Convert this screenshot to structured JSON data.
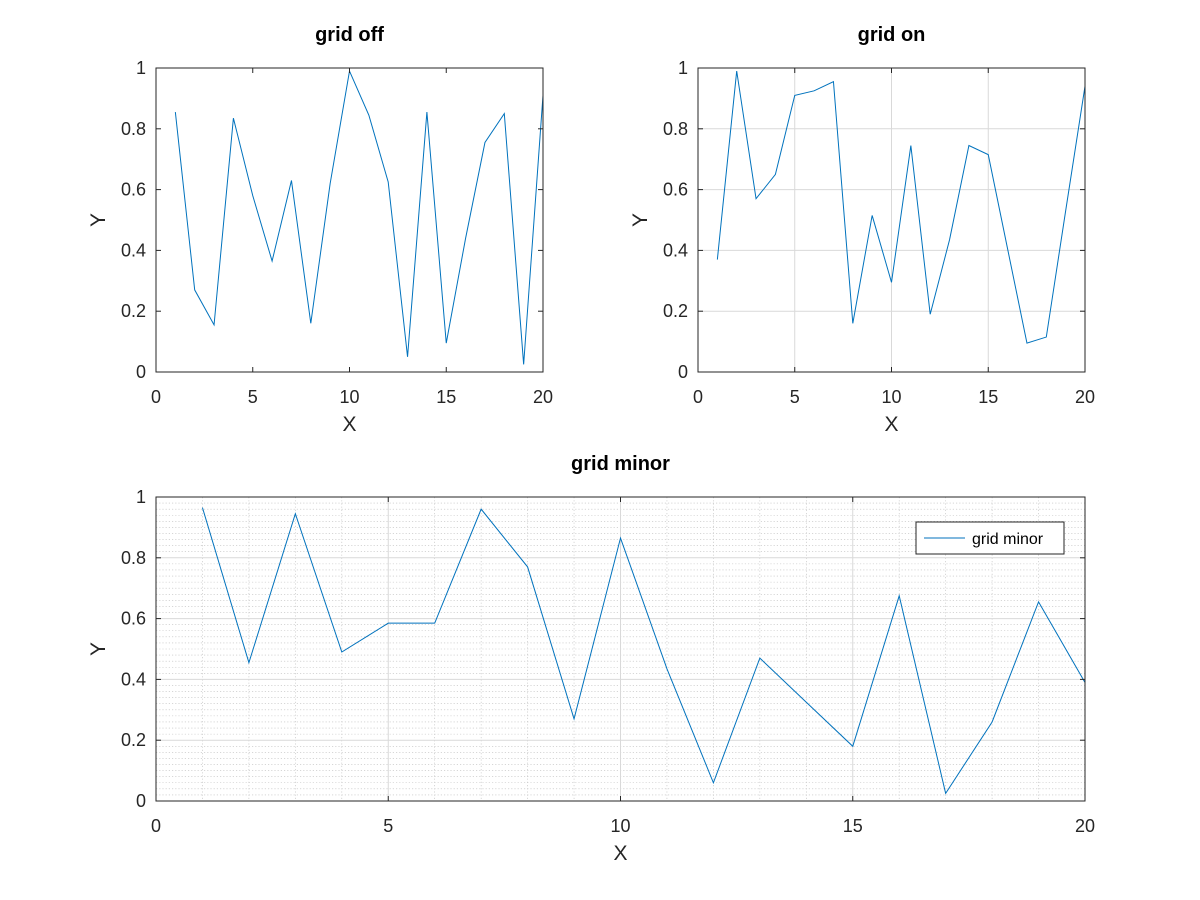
{
  "chart_data": [
    {
      "type": "line",
      "title": "grid off",
      "xlabel": "X",
      "ylabel": "Y",
      "xlim": [
        0,
        20
      ],
      "ylim": [
        0,
        1
      ],
      "xticks": [
        0,
        5,
        10,
        15,
        20
      ],
      "yticks": [
        0,
        0.2,
        0.4,
        0.6,
        0.8,
        1
      ],
      "xtick_labels": [
        "0",
        "5",
        "10",
        "15",
        "20"
      ],
      "ytick_labels": [
        "0",
        "0.2",
        "0.4",
        "0.6",
        "0.8",
        "1"
      ],
      "grid": "off",
      "legend": null,
      "series": [
        {
          "color": "#0072BD",
          "x": [
            1,
            2,
            3,
            4,
            5,
            6,
            7,
            8,
            9,
            10,
            11,
            12,
            13,
            14,
            15,
            16,
            17,
            18,
            19,
            20
          ],
          "y": [
            0.855,
            0.27,
            0.155,
            0.835,
            0.58,
            0.365,
            0.63,
            0.16,
            0.62,
            0.99,
            0.845,
            0.625,
            0.05,
            0.855,
            0.095,
            0.44,
            0.755,
            0.85,
            0.025,
            0.91
          ]
        }
      ]
    },
    {
      "type": "line",
      "title": "grid on",
      "xlabel": "X",
      "ylabel": "Y",
      "xlim": [
        0,
        20
      ],
      "ylim": [
        0,
        1
      ],
      "xticks": [
        0,
        5,
        10,
        15,
        20
      ],
      "yticks": [
        0,
        0.2,
        0.4,
        0.6,
        0.8,
        1
      ],
      "xtick_labels": [
        "0",
        "5",
        "10",
        "15",
        "20"
      ],
      "ytick_labels": [
        "0",
        "0.2",
        "0.4",
        "0.6",
        "0.8",
        "1"
      ],
      "grid": "on",
      "legend": null,
      "series": [
        {
          "color": "#0072BD",
          "x": [
            1,
            2,
            3,
            4,
            5,
            6,
            7,
            8,
            9,
            10,
            11,
            12,
            13,
            14,
            15,
            16,
            17,
            18,
            19,
            20
          ],
          "y": [
            0.37,
            0.99,
            0.57,
            0.65,
            0.91,
            0.925,
            0.955,
            0.16,
            0.515,
            0.295,
            0.745,
            0.19,
            0.435,
            0.745,
            0.715,
            0.405,
            0.095,
            0.115,
            0.53,
            0.94
          ]
        }
      ]
    },
    {
      "type": "line",
      "title": "grid minor",
      "xlabel": "X",
      "ylabel": "Y",
      "xlim": [
        0,
        20
      ],
      "ylim": [
        0,
        1
      ],
      "xticks": [
        0,
        5,
        10,
        15,
        20
      ],
      "yticks": [
        0,
        0.2,
        0.4,
        0.6,
        0.8,
        1
      ],
      "xtick_labels": [
        "0",
        "5",
        "10",
        "15",
        "20"
      ],
      "ytick_labels": [
        "0",
        "0.2",
        "0.4",
        "0.6",
        "0.8",
        "1"
      ],
      "grid": "minor",
      "legend": "top-right",
      "series": [
        {
          "name": "grid minor",
          "color": "#0072BD",
          "x": [
            1,
            2,
            3,
            4,
            5,
            6,
            7,
            8,
            9,
            10,
            11,
            12,
            13,
            14,
            15,
            16,
            17,
            18,
            19,
            20
          ],
          "y": [
            0.965,
            0.455,
            0.945,
            0.49,
            0.585,
            0.585,
            0.96,
            0.77,
            0.27,
            0.865,
            0.435,
            0.06,
            0.47,
            0.325,
            0.18,
            0.675,
            0.025,
            0.26,
            0.655,
            0.39
          ]
        }
      ]
    }
  ]
}
